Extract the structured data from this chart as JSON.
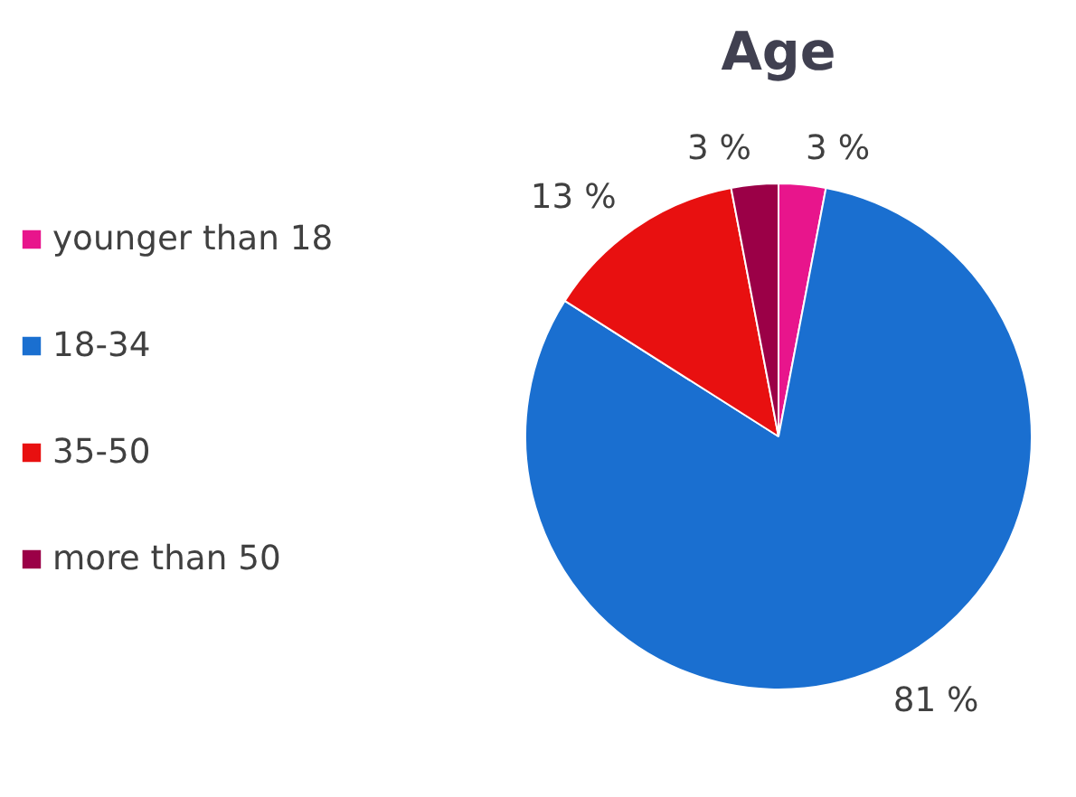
{
  "chart_data": {
    "type": "pie",
    "title": "Age",
    "categories": [
      "younger than 18",
      "18-34",
      "35-50",
      "more than 50"
    ],
    "values": [
      3,
      81,
      13,
      3
    ],
    "colors": [
      "#e8158c",
      "#1a6fd0",
      "#e81010",
      "#9b0047"
    ],
    "value_labels": [
      "3 %",
      "81 %",
      "13 %",
      "3 %"
    ],
    "legend": "left"
  }
}
